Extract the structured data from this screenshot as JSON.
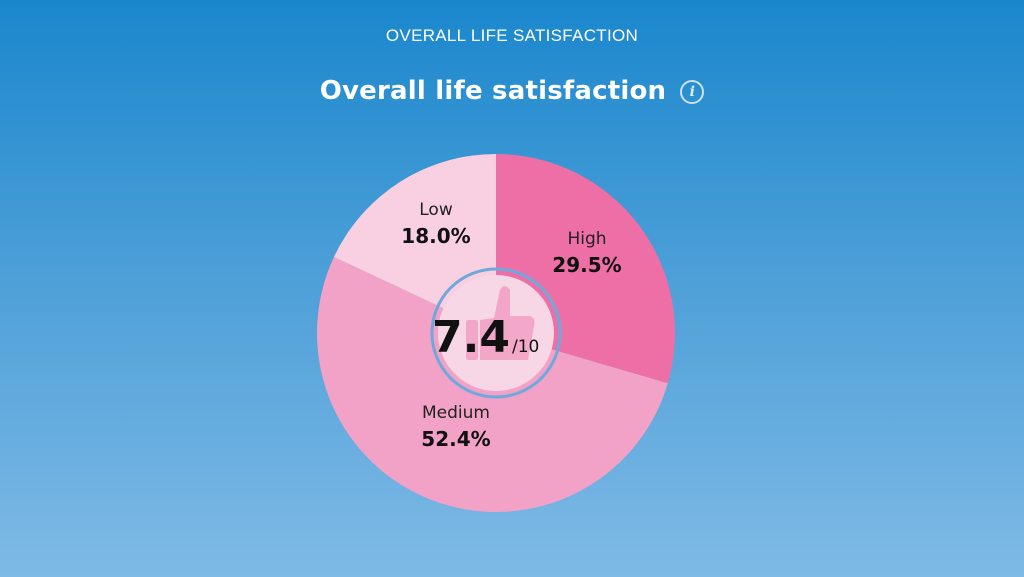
{
  "header": {
    "label": "OVERALL LIFE SATISFACTION"
  },
  "title": "Overall life satisfaction",
  "info_icon": {
    "glyph": "i",
    "name": "info-icon"
  },
  "center_badge": {
    "score": "7.4",
    "denominator": "/10",
    "icon": "thumbs-up-icon"
  },
  "chart_data": {
    "type": "pie",
    "title": "Overall life satisfaction",
    "slices": [
      {
        "label": "High",
        "value": 29.5,
        "display": "29.5%",
        "color": "#ee6fa6"
      },
      {
        "label": "Medium",
        "value": 52.4,
        "display": "52.4%",
        "color": "#f3a2c7"
      },
      {
        "label": "Low",
        "value": 18.0,
        "display": "18.0%",
        "color": "#f9cfe2"
      }
    ],
    "start": "12 o'clock",
    "direction": "clockwise"
  },
  "colors": {
    "background_top": "#1a87cd",
    "background_bottom": "#7fbae6",
    "badge_ring": "#6ea8dc",
    "badge_fill": "#f7d6e6"
  }
}
